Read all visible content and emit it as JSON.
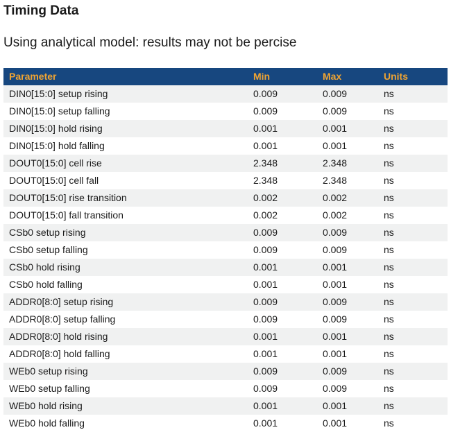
{
  "page": {
    "title": "Timing Data",
    "subtitle": "Using analytical model: results may not be percise"
  },
  "colors": {
    "header_bg": "#17477f",
    "header_text": "#f0a432",
    "row_alt_bg": "#f0f1f1",
    "body_text": "#1a1a1a",
    "page_bg": "#ffffff"
  },
  "table": {
    "columns": [
      "Parameter",
      "Min",
      "Max",
      "Units"
    ],
    "rows": [
      {
        "parameter": "DIN0[15:0] setup rising",
        "min": "0.009",
        "max": "0.009",
        "units": "ns"
      },
      {
        "parameter": "DIN0[15:0] setup falling",
        "min": "0.009",
        "max": "0.009",
        "units": "ns"
      },
      {
        "parameter": "DIN0[15:0] hold rising",
        "min": "0.001",
        "max": "0.001",
        "units": "ns"
      },
      {
        "parameter": "DIN0[15:0] hold falling",
        "min": "0.001",
        "max": "0.001",
        "units": "ns"
      },
      {
        "parameter": "DOUT0[15:0] cell rise",
        "min": "2.348",
        "max": "2.348",
        "units": "ns"
      },
      {
        "parameter": "DOUT0[15:0] cell fall",
        "min": "2.348",
        "max": "2.348",
        "units": "ns"
      },
      {
        "parameter": "DOUT0[15:0] rise transition",
        "min": "0.002",
        "max": "0.002",
        "units": "ns"
      },
      {
        "parameter": "DOUT0[15:0] fall transition",
        "min": "0.002",
        "max": "0.002",
        "units": "ns"
      },
      {
        "parameter": "CSb0 setup rising",
        "min": "0.009",
        "max": "0.009",
        "units": "ns"
      },
      {
        "parameter": "CSb0 setup falling",
        "min": "0.009",
        "max": "0.009",
        "units": "ns"
      },
      {
        "parameter": "CSb0 hold rising",
        "min": "0.001",
        "max": "0.001",
        "units": "ns"
      },
      {
        "parameter": "CSb0 hold falling",
        "min": "0.001",
        "max": "0.001",
        "units": "ns"
      },
      {
        "parameter": "ADDR0[8:0] setup rising",
        "min": "0.009",
        "max": "0.009",
        "units": "ns"
      },
      {
        "parameter": "ADDR0[8:0] setup falling",
        "min": "0.009",
        "max": "0.009",
        "units": "ns"
      },
      {
        "parameter": "ADDR0[8:0] hold rising",
        "min": "0.001",
        "max": "0.001",
        "units": "ns"
      },
      {
        "parameter": "ADDR0[8:0] hold falling",
        "min": "0.001",
        "max": "0.001",
        "units": "ns"
      },
      {
        "parameter": "WEb0 setup rising",
        "min": "0.009",
        "max": "0.009",
        "units": "ns"
      },
      {
        "parameter": "WEb0 setup falling",
        "min": "0.009",
        "max": "0.009",
        "units": "ns"
      },
      {
        "parameter": "WEb0 hold rising",
        "min": "0.001",
        "max": "0.001",
        "units": "ns"
      },
      {
        "parameter": "WEb0 hold falling",
        "min": "0.001",
        "max": "0.001",
        "units": "ns"
      }
    ]
  }
}
